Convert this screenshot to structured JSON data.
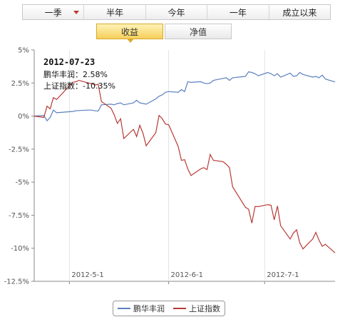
{
  "period_tabs": [
    {
      "label": "一季",
      "has_dropdown": true
    },
    {
      "label": "半年"
    },
    {
      "label": "今年"
    },
    {
      "label": "一年"
    },
    {
      "label": "成立以来"
    }
  ],
  "metric_tabs": [
    {
      "label": "收益",
      "active": true
    },
    {
      "label": "净值",
      "active": false
    }
  ],
  "tooltip": {
    "date": "2012-07-23",
    "line1": "鹏华丰润：2.58%",
    "line2": "上证指数：-10.35%"
  },
  "legend": [
    {
      "label": "鹏华丰润",
      "color": "#5b7fbf"
    },
    {
      "label": "上证指数",
      "color": "#b83a36"
    }
  ],
  "chart_data": {
    "type": "line",
    "y_ticks": [
      "5%",
      "2.5%",
      "0%",
      "-2.5%",
      "-5%",
      "-7.5%",
      "-10%",
      "-12.5%"
    ],
    "y_tick_values": [
      5,
      2.5,
      0,
      -2.5,
      -5,
      -7.5,
      -10,
      -12.5
    ],
    "ylim": [
      -12.5,
      5
    ],
    "x_ticks": [
      "2012-5-1",
      "2012-6-1",
      "2012-7-1"
    ],
    "xlim": [
      "2012-04-20",
      "2012-07-23"
    ],
    "grid_x": true,
    "grid_y": false,
    "legend_position": "bottom",
    "series": [
      {
        "name": "鹏华丰润",
        "color": "#5b7fbf",
        "points": [
          [
            "2012-04-20",
            0.0
          ],
          [
            "2012-04-23",
            0.05
          ],
          [
            "2012-04-24",
            -0.35
          ],
          [
            "2012-04-25",
            -0.1
          ],
          [
            "2012-04-26",
            0.45
          ],
          [
            "2012-04-27",
            0.25
          ],
          [
            "2012-05-02",
            0.35
          ],
          [
            "2012-05-03",
            0.4
          ],
          [
            "2012-05-04",
            0.42
          ],
          [
            "2012-05-07",
            0.45
          ],
          [
            "2012-05-08",
            0.45
          ],
          [
            "2012-05-09",
            0.4
          ],
          [
            "2012-05-10",
            0.38
          ],
          [
            "2012-05-11",
            0.85
          ],
          [
            "2012-05-14",
            0.9
          ],
          [
            "2012-05-15",
            0.85
          ],
          [
            "2012-05-16",
            0.95
          ],
          [
            "2012-05-17",
            1.0
          ],
          [
            "2012-05-18",
            0.85
          ],
          [
            "2012-05-21",
            1.0
          ],
          [
            "2012-05-22",
            1.2
          ],
          [
            "2012-05-23",
            1.0
          ],
          [
            "2012-05-24",
            0.95
          ],
          [
            "2012-05-25",
            0.9
          ],
          [
            "2012-05-28",
            1.3
          ],
          [
            "2012-05-29",
            1.5
          ],
          [
            "2012-05-30",
            1.6
          ],
          [
            "2012-05-31",
            1.8
          ],
          [
            "2012-06-01",
            1.85
          ],
          [
            "2012-06-04",
            1.8
          ],
          [
            "2012-06-05",
            2.0
          ],
          [
            "2012-06-06",
            1.85
          ],
          [
            "2012-06-07",
            2.6
          ],
          [
            "2012-06-08",
            2.55
          ],
          [
            "2012-06-11",
            2.6
          ],
          [
            "2012-06-12",
            2.5
          ],
          [
            "2012-06-13",
            2.45
          ],
          [
            "2012-06-14",
            2.5
          ],
          [
            "2012-06-15",
            2.7
          ],
          [
            "2012-06-18",
            2.85
          ],
          [
            "2012-06-19",
            2.9
          ],
          [
            "2012-06-20",
            2.7
          ],
          [
            "2012-06-21",
            2.9
          ],
          [
            "2012-06-25",
            3.0
          ],
          [
            "2012-06-26",
            3.35
          ],
          [
            "2012-06-27",
            3.3
          ],
          [
            "2012-06-28",
            3.2
          ],
          [
            "2012-06-29",
            3.05
          ],
          [
            "2012-07-02",
            3.3
          ],
          [
            "2012-07-03",
            3.2
          ],
          [
            "2012-07-04",
            3.05
          ],
          [
            "2012-07-05",
            3.2
          ],
          [
            "2012-07-06",
            2.95
          ],
          [
            "2012-07-09",
            3.25
          ],
          [
            "2012-07-10",
            3.0
          ],
          [
            "2012-07-11",
            3.05
          ],
          [
            "2012-07-12",
            3.3
          ],
          [
            "2012-07-13",
            3.15
          ],
          [
            "2012-07-16",
            2.95
          ],
          [
            "2012-07-17",
            3.0
          ],
          [
            "2012-07-18",
            2.9
          ],
          [
            "2012-07-19",
            3.1
          ],
          [
            "2012-07-20",
            2.8
          ],
          [
            "2012-07-23",
            2.58
          ]
        ]
      },
      {
        "name": "上证指数",
        "color": "#b83a36",
        "points": [
          [
            "2012-04-20",
            0.0
          ],
          [
            "2012-04-23",
            -0.1
          ],
          [
            "2012-04-24",
            0.75
          ],
          [
            "2012-04-25",
            0.55
          ],
          [
            "2012-04-26",
            1.4
          ],
          [
            "2012-04-27",
            1.25
          ],
          [
            "2012-05-02",
            2.55
          ],
          [
            "2012-05-03",
            2.6
          ],
          [
            "2012-05-04",
            2.7
          ],
          [
            "2012-05-07",
            2.5
          ],
          [
            "2012-05-08",
            2.45
          ],
          [
            "2012-05-09",
            2.35
          ],
          [
            "2012-05-10",
            2.4
          ],
          [
            "2012-05-11",
            1.1
          ],
          [
            "2012-05-14",
            0.6
          ],
          [
            "2012-05-15",
            0.1
          ],
          [
            "2012-05-16",
            -0.55
          ],
          [
            "2012-05-17",
            -0.2
          ],
          [
            "2012-05-18",
            -1.7
          ],
          [
            "2012-05-21",
            -1.0
          ],
          [
            "2012-05-22",
            -1.55
          ],
          [
            "2012-05-23",
            -0.7
          ],
          [
            "2012-05-24",
            -1.3
          ],
          [
            "2012-05-25",
            -2.25
          ],
          [
            "2012-05-28",
            -1.25
          ],
          [
            "2012-05-29",
            0.05
          ],
          [
            "2012-05-30",
            -0.2
          ],
          [
            "2012-05-31",
            -0.6
          ],
          [
            "2012-06-01",
            -0.65
          ],
          [
            "2012-06-04",
            -2.3
          ],
          [
            "2012-06-05",
            -3.35
          ],
          [
            "2012-06-06",
            -3.3
          ],
          [
            "2012-06-07",
            -4.0
          ],
          [
            "2012-06-08",
            -4.5
          ],
          [
            "2012-06-11",
            -4.0
          ],
          [
            "2012-06-12",
            -3.9
          ],
          [
            "2012-06-13",
            -4.05
          ],
          [
            "2012-06-14",
            -2.9
          ],
          [
            "2012-06-15",
            -3.35
          ],
          [
            "2012-06-18",
            -3.45
          ],
          [
            "2012-06-19",
            -3.65
          ],
          [
            "2012-06-20",
            -3.9
          ],
          [
            "2012-06-21",
            -5.35
          ],
          [
            "2012-06-25",
            -6.9
          ],
          [
            "2012-06-26",
            -7.05
          ],
          [
            "2012-06-27",
            -8.1
          ],
          [
            "2012-06-28",
            -6.85
          ],
          [
            "2012-06-29",
            -6.85
          ],
          [
            "2012-07-02",
            -6.7
          ],
          [
            "2012-07-03",
            -6.75
          ],
          [
            "2012-07-04",
            -7.85
          ],
          [
            "2012-07-05",
            -6.8
          ],
          [
            "2012-07-06",
            -8.3
          ],
          [
            "2012-07-09",
            -9.3
          ],
          [
            "2012-07-10",
            -8.85
          ],
          [
            "2012-07-11",
            -8.6
          ],
          [
            "2012-07-12",
            -9.6
          ],
          [
            "2012-07-13",
            -10.05
          ],
          [
            "2012-07-16",
            -9.3
          ],
          [
            "2012-07-17",
            -8.8
          ],
          [
            "2012-07-18",
            -9.4
          ],
          [
            "2012-07-19",
            -9.85
          ],
          [
            "2012-07-20",
            -9.7
          ],
          [
            "2012-07-23",
            -10.35
          ]
        ]
      }
    ]
  }
}
